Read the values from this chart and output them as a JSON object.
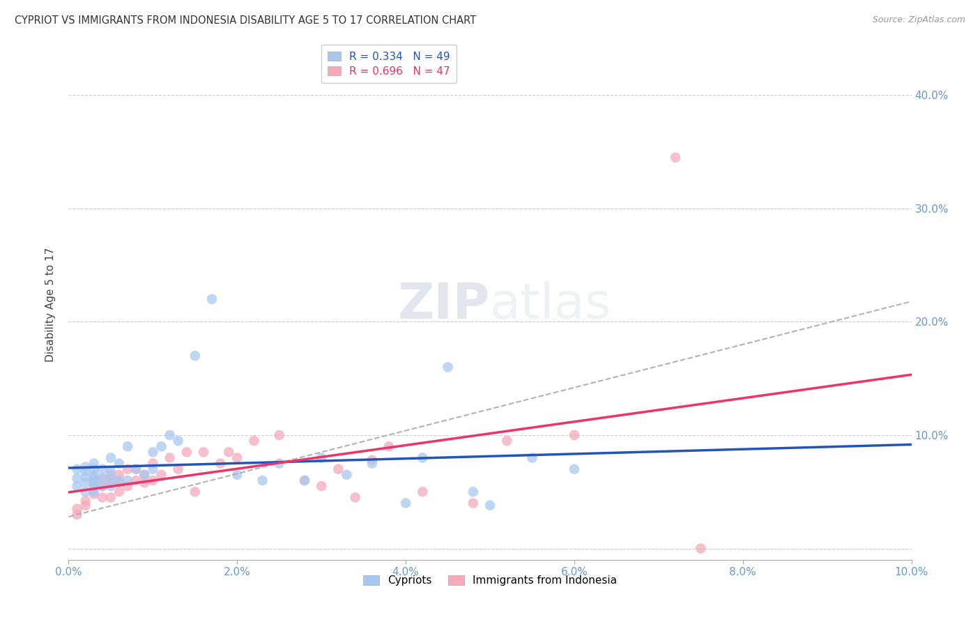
{
  "title": "CYPRIOT VS IMMIGRANTS FROM INDONESIA DISABILITY AGE 5 TO 17 CORRELATION CHART",
  "source": "Source: ZipAtlas.com",
  "ylabel": "Disability Age 5 to 17",
  "xlim": [
    0.0,
    0.1
  ],
  "ylim": [
    -0.01,
    0.44
  ],
  "xticks": [
    0.0,
    0.02,
    0.04,
    0.06,
    0.08,
    0.1
  ],
  "yticks": [
    0.0,
    0.1,
    0.2,
    0.3,
    0.4
  ],
  "xtick_labels": [
    "0.0%",
    "2.0%",
    "4.0%",
    "6.0%",
    "8.0%",
    "10.0%"
  ],
  "ytick_labels_right": [
    "",
    "10.0%",
    "20.0%",
    "30.0%",
    "40.0%"
  ],
  "color_cypriot": "#a8c8f0",
  "color_indonesia": "#f5aabb",
  "color_line_cypriot": "#2255bb",
  "color_line_indonesia": "#ee3366",
  "color_dashed": "#aaaaaa",
  "watermark_color": "#ccddef",
  "cypriot_x": [
    0.001,
    0.001,
    0.001,
    0.002,
    0.002,
    0.002,
    0.002,
    0.002,
    0.003,
    0.003,
    0.003,
    0.003,
    0.003,
    0.003,
    0.003,
    0.004,
    0.004,
    0.004,
    0.005,
    0.005,
    0.005,
    0.005,
    0.006,
    0.006,
    0.007,
    0.007,
    0.008,
    0.009,
    0.01,
    0.01,
    0.011,
    0.012,
    0.013,
    0.015,
    0.017,
    0.02,
    0.023,
    0.025,
    0.028,
    0.03,
    0.033,
    0.036,
    0.04,
    0.042,
    0.045,
    0.048,
    0.05,
    0.055,
    0.06
  ],
  "cypriot_y": [
    0.055,
    0.062,
    0.07,
    0.05,
    0.058,
    0.063,
    0.068,
    0.072,
    0.05,
    0.055,
    0.058,
    0.062,
    0.065,
    0.07,
    0.075,
    0.055,
    0.062,
    0.07,
    0.055,
    0.062,
    0.068,
    0.08,
    0.06,
    0.075,
    0.06,
    0.09,
    0.07,
    0.065,
    0.07,
    0.085,
    0.09,
    0.1,
    0.095,
    0.17,
    0.22,
    0.065,
    0.06,
    0.075,
    0.06,
    0.08,
    0.065,
    0.075,
    0.04,
    0.08,
    0.16,
    0.05,
    0.038,
    0.08,
    0.07
  ],
  "indonesia_x": [
    0.001,
    0.001,
    0.002,
    0.002,
    0.003,
    0.003,
    0.003,
    0.004,
    0.004,
    0.004,
    0.005,
    0.005,
    0.005,
    0.006,
    0.006,
    0.006,
    0.007,
    0.007,
    0.008,
    0.008,
    0.009,
    0.009,
    0.01,
    0.01,
    0.011,
    0.012,
    0.013,
    0.014,
    0.015,
    0.016,
    0.018,
    0.019,
    0.02,
    0.022,
    0.025,
    0.028,
    0.03,
    0.032,
    0.034,
    0.036,
    0.038,
    0.042,
    0.048,
    0.052,
    0.06,
    0.072,
    0.075
  ],
  "indonesia_y": [
    0.03,
    0.035,
    0.038,
    0.042,
    0.048,
    0.055,
    0.06,
    0.045,
    0.055,
    0.062,
    0.045,
    0.058,
    0.065,
    0.05,
    0.058,
    0.065,
    0.055,
    0.07,
    0.06,
    0.07,
    0.058,
    0.065,
    0.06,
    0.075,
    0.065,
    0.08,
    0.07,
    0.085,
    0.05,
    0.085,
    0.075,
    0.085,
    0.08,
    0.095,
    0.1,
    0.06,
    0.055,
    0.07,
    0.045,
    0.078,
    0.09,
    0.05,
    0.04,
    0.095,
    0.1,
    0.345,
    0.0
  ],
  "cypriot_R": 0.334,
  "cypriot_N": 49,
  "indonesia_R": 0.696,
  "indonesia_N": 47
}
